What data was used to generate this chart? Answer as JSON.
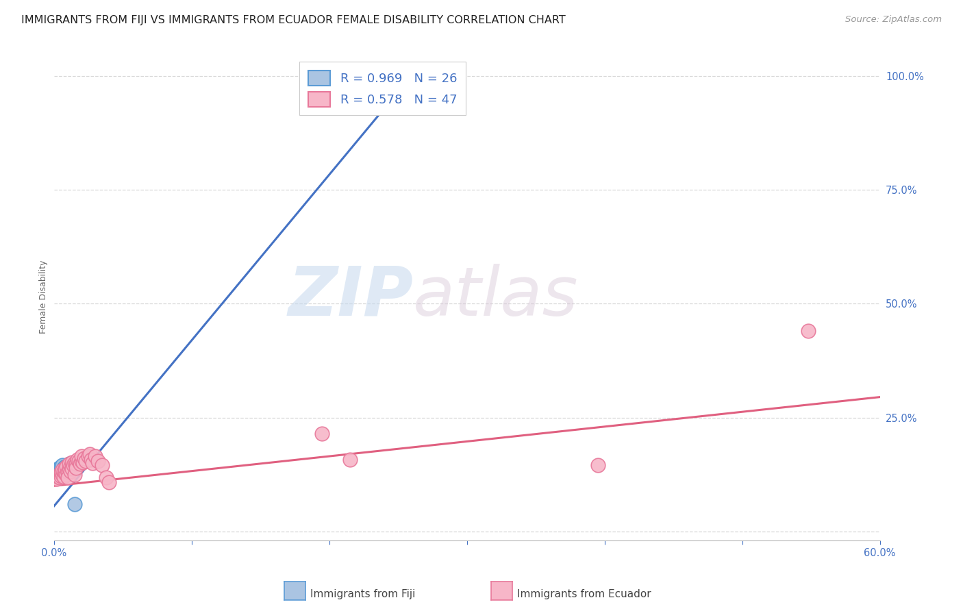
{
  "title": "IMMIGRANTS FROM FIJI VS IMMIGRANTS FROM ECUADOR FEMALE DISABILITY CORRELATION CHART",
  "source": "Source: ZipAtlas.com",
  "ylabel": "Female Disability",
  "xlim": [
    0.0,
    0.6
  ],
  "ylim": [
    -0.02,
    1.05
  ],
  "ytick_positions": [
    0.0,
    0.25,
    0.5,
    0.75,
    1.0
  ],
  "xtick_positions": [
    0.0,
    0.1,
    0.2,
    0.3,
    0.4,
    0.5,
    0.6
  ],
  "fiji_color": "#aac4e2",
  "fiji_edge_color": "#5b9bd5",
  "ecuador_color": "#f7b6c8",
  "ecuador_edge_color": "#e8789a",
  "fiji_line_color": "#4472c4",
  "ecuador_line_color": "#e06080",
  "fiji_R": 0.969,
  "fiji_N": 26,
  "ecuador_R": 0.578,
  "ecuador_N": 47,
  "legend_text_color": "#4472c4",
  "watermark_zip": "ZIP",
  "watermark_atlas": "atlas",
  "fiji_scatter_x": [
    0.001,
    0.002,
    0.002,
    0.003,
    0.003,
    0.003,
    0.004,
    0.004,
    0.004,
    0.004,
    0.005,
    0.005,
    0.005,
    0.006,
    0.006,
    0.006,
    0.007,
    0.007,
    0.008,
    0.008,
    0.009,
    0.01,
    0.011,
    0.012,
    0.015,
    0.252
  ],
  "fiji_scatter_y": [
    0.13,
    0.125,
    0.135,
    0.128,
    0.132,
    0.138,
    0.127,
    0.133,
    0.14,
    0.13,
    0.135,
    0.128,
    0.142,
    0.13,
    0.138,
    0.145,
    0.133,
    0.14,
    0.137,
    0.143,
    0.138,
    0.142,
    0.148,
    0.143,
    0.06,
    0.972
  ],
  "ecuador_scatter_x": [
    0.002,
    0.003,
    0.004,
    0.005,
    0.005,
    0.006,
    0.006,
    0.007,
    0.007,
    0.008,
    0.008,
    0.009,
    0.009,
    0.01,
    0.01,
    0.011,
    0.011,
    0.012,
    0.012,
    0.013,
    0.013,
    0.014,
    0.015,
    0.015,
    0.016,
    0.016,
    0.017,
    0.018,
    0.019,
    0.02,
    0.02,
    0.021,
    0.022,
    0.023,
    0.025,
    0.026,
    0.027,
    0.028,
    0.03,
    0.032,
    0.035,
    0.038,
    0.04,
    0.195,
    0.215,
    0.395,
    0.548
  ],
  "ecuador_scatter_y": [
    0.115,
    0.12,
    0.118,
    0.122,
    0.13,
    0.125,
    0.135,
    0.12,
    0.132,
    0.128,
    0.138,
    0.125,
    0.142,
    0.13,
    0.118,
    0.138,
    0.148,
    0.142,
    0.132,
    0.152,
    0.138,
    0.145,
    0.15,
    0.125,
    0.148,
    0.14,
    0.158,
    0.155,
    0.148,
    0.155,
    0.165,
    0.152,
    0.16,
    0.155,
    0.165,
    0.17,
    0.158,
    0.15,
    0.165,
    0.155,
    0.145,
    0.118,
    0.108,
    0.215,
    0.158,
    0.145,
    0.44
  ],
  "fiji_trend_x": [
    0.0,
    0.252
  ],
  "fiji_trend_y": [
    0.055,
    0.972
  ],
  "ecuador_trend_x": [
    0.0,
    0.6
  ],
  "ecuador_trend_y": [
    0.1,
    0.295
  ],
  "background_color": "#ffffff",
  "grid_color": "#d8d8d8",
  "title_fontsize": 11.5,
  "axis_label_fontsize": 9,
  "tick_fontsize": 10.5,
  "legend_fontsize": 13
}
